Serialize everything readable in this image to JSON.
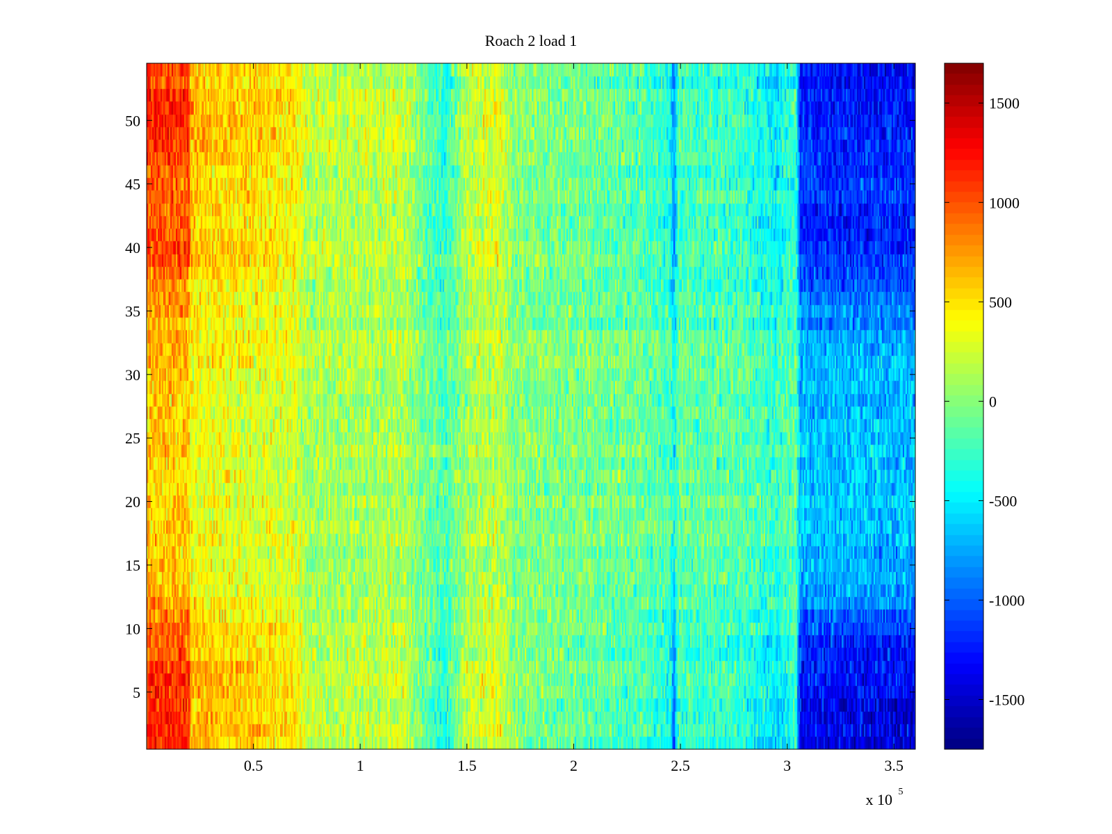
{
  "chart_data": {
    "type": "heatmap",
    "title": "Roach 2 load 1",
    "xlabel": "",
    "ylabel": "",
    "x_multiplier_label": "x 10",
    "x_multiplier_exponent": "5",
    "xlim": [
      0,
      360000
    ],
    "ylim": [
      0.5,
      54.5
    ],
    "x_ticks": [
      50000,
      100000,
      150000,
      200000,
      250000,
      300000,
      350000
    ],
    "x_tick_labels": [
      "0.5",
      "1",
      "1.5",
      "2",
      "2.5",
      "3",
      "3.5"
    ],
    "y_ticks": [
      5,
      10,
      15,
      20,
      25,
      30,
      35,
      40,
      45,
      50
    ],
    "y_tick_labels": [
      "5",
      "10",
      "15",
      "20",
      "25",
      "30",
      "35",
      "40",
      "45",
      "50"
    ],
    "colorbar": {
      "colormap": "jet",
      "clim": [
        -1750,
        1700
      ],
      "ticks": [
        1500,
        1000,
        500,
        0,
        -500,
        -1000,
        -1500
      ],
      "tick_labels": [
        "1500",
        "1000",
        "500",
        "0",
        "-500",
        "-1000",
        "-1500"
      ]
    },
    "rows": 54,
    "x_range": [
      0,
      360000
    ],
    "column_profile": [
      {
        "x": 0,
        "value": 900
      },
      {
        "x": 20000,
        "value": 900
      },
      {
        "x": 20500,
        "value": 550
      },
      {
        "x": 50000,
        "value": 450
      },
      {
        "x": 70000,
        "value": 380
      },
      {
        "x": 75000,
        "value": 150
      },
      {
        "x": 110000,
        "value": 150
      },
      {
        "x": 120000,
        "value": 200
      },
      {
        "x": 130000,
        "value": -100
      },
      {
        "x": 140000,
        "value": -300
      },
      {
        "x": 150000,
        "value": 150
      },
      {
        "x": 165000,
        "value": 250
      },
      {
        "x": 172000,
        "value": 0
      },
      {
        "x": 230000,
        "value": -150
      },
      {
        "x": 245000,
        "value": -300
      },
      {
        "x": 247000,
        "value": -750
      },
      {
        "x": 249000,
        "value": -200
      },
      {
        "x": 280000,
        "value": -250
      },
      {
        "x": 295000,
        "value": -450
      },
      {
        "x": 304000,
        "value": -200
      },
      {
        "x": 306000,
        "value": -1050
      },
      {
        "x": 360000,
        "value": -1100
      }
    ],
    "row_profile": [
      {
        "y": 1,
        "value": 1.3
      },
      {
        "y": 5,
        "value": 1.25
      },
      {
        "y": 10,
        "value": 1.05
      },
      {
        "y": 13,
        "value": 0.7
      },
      {
        "y": 20,
        "value": 0.6
      },
      {
        "y": 30,
        "value": 0.65
      },
      {
        "y": 36,
        "value": 0.85
      },
      {
        "y": 40,
        "value": 1.15
      },
      {
        "y": 45,
        "value": 1.05
      },
      {
        "y": 50,
        "value": 1.2
      },
      {
        "y": 54,
        "value": 1.2
      }
    ],
    "noise_amplitude": 320
  }
}
